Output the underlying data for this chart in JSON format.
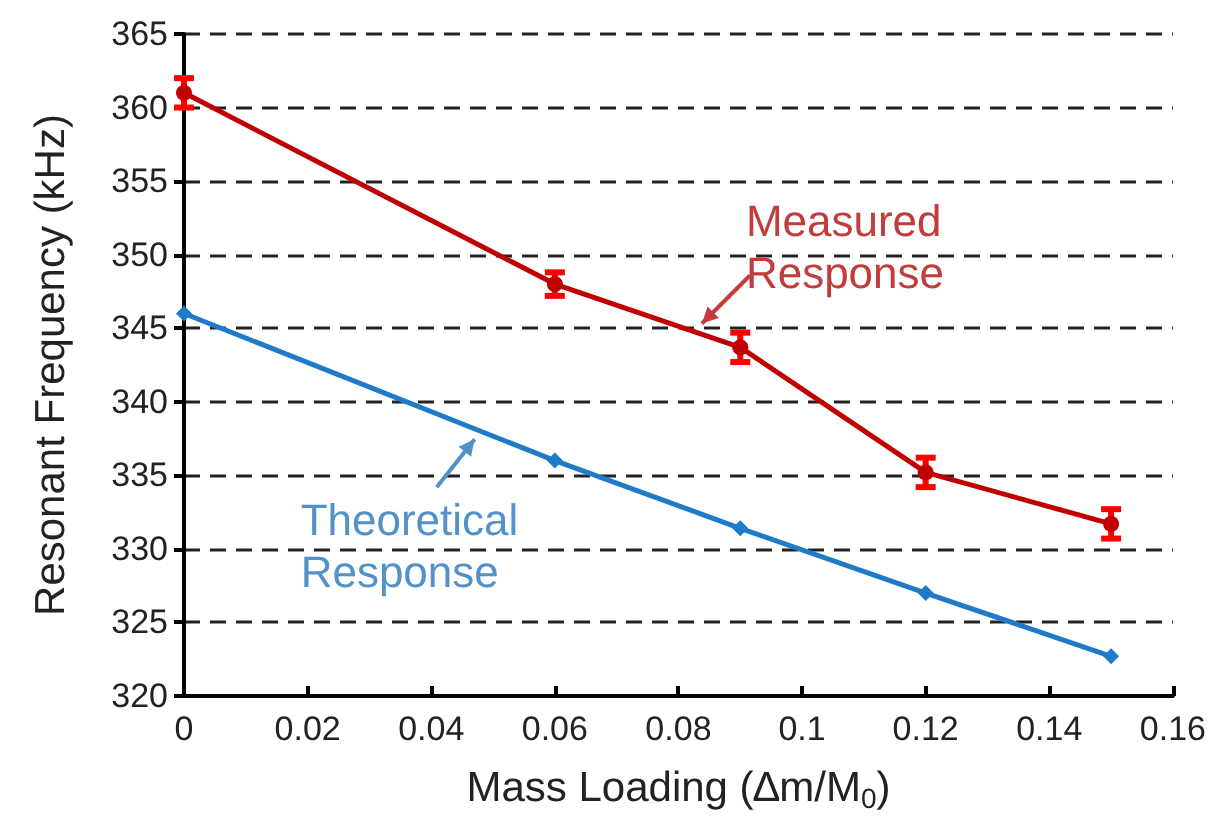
{
  "chart_data": {
    "type": "line",
    "xlabel": "Mass Loading (∆m/M$_{0}$)",
    "ylabel": "Resonant Frequency (kHz)",
    "x": [
      0,
      0.06,
      0.09,
      0.12,
      0.15
    ],
    "series": [
      {
        "name": "Measured Response",
        "color": "#c00000",
        "values": [
          361,
          348,
          343.7,
          335.2,
          331.7
        ],
        "errors": [
          1,
          0.8,
          1,
          1,
          1
        ],
        "marker": "circle"
      },
      {
        "name": "Theoretical Response",
        "color": "#1f7bc8",
        "values": [
          346,
          336,
          331.4,
          327,
          322.7
        ],
        "marker": "diamond"
      }
    ],
    "xlim": [
      0,
      0.16
    ],
    "xticks": [
      0,
      0.02,
      0.04,
      0.06,
      0.08,
      0.1,
      0.12,
      0.14,
      0.16
    ],
    "ylim": [
      320,
      365
    ],
    "yticks": [
      320,
      325,
      330,
      335,
      340,
      345,
      350,
      355,
      360,
      365
    ],
    "grid": "y",
    "legend": false,
    "line_style": "solid"
  }
}
